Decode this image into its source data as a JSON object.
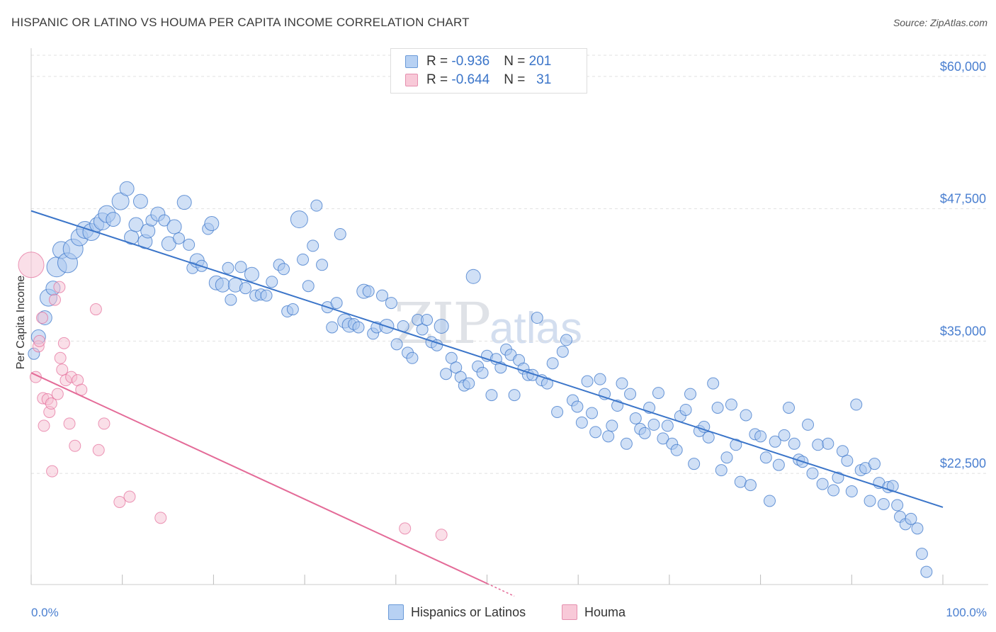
{
  "header": {
    "title": "HISPANIC OR LATINO VS HOUMA PER CAPITA INCOME CORRELATION CHART",
    "source": "Source: ZipAtlas.com"
  },
  "watermark": {
    "main": "ZIP",
    "sub": "atlas"
  },
  "legend": {
    "rows": [
      {
        "r_label": "R = ",
        "r_value": "-0.936",
        "n_label": "N = ",
        "n_value": "201"
      },
      {
        "r_label": "R = ",
        "r_value": "-0.644",
        "n_label": "N = ",
        "n_value": "  31"
      }
    ]
  },
  "bottom_legend": {
    "items": [
      {
        "label": "Hispanics or Latinos"
      },
      {
        "label": "Houma"
      }
    ]
  },
  "colors": {
    "blue": "#3b75c9",
    "blue_fill": "#a9c7ef",
    "pink": "#e46b98",
    "pink_fill": "#f5bfd1",
    "grid": "#e1e1e1"
  },
  "chart_data": {
    "type": "scatter",
    "ylabel": "Per Capita Income",
    "xlabel": "",
    "xlim": [
      0,
      100
    ],
    "ylim": [
      12000,
      62000
    ],
    "x_tick_labels": {
      "left": "0.0%",
      "right": "100.0%"
    },
    "y_ticks": [
      {
        "value": 22500,
        "label": "$22,500"
      },
      {
        "value": 35000,
        "label": "$35,000"
      },
      {
        "value": 47500,
        "label": "$47,500"
      },
      {
        "value": 60000,
        "label": "$60,000"
      }
    ],
    "grid": true,
    "legend_position": "top-center",
    "series": [
      {
        "name": "Hispanics or Latinos",
        "color": "#3b75c9",
        "trend": {
          "x0": 0,
          "y0": 47300,
          "x1": 100,
          "y1": 19300
        },
        "points": [
          [
            0.3,
            33800,
            8
          ],
          [
            0.8,
            35400,
            10
          ],
          [
            1.5,
            37200,
            10
          ],
          [
            1.9,
            39100,
            12
          ],
          [
            2.4,
            40000,
            10
          ],
          [
            2.8,
            42000,
            14
          ],
          [
            3.3,
            43600,
            12
          ],
          [
            4.0,
            42400,
            14
          ],
          [
            4.6,
            43700,
            14
          ],
          [
            5.3,
            44800,
            12
          ],
          [
            5.9,
            45500,
            12
          ],
          [
            6.6,
            45300,
            12
          ],
          [
            7.2,
            46000,
            10
          ],
          [
            7.8,
            46300,
            12
          ],
          [
            8.3,
            47000,
            12
          ],
          [
            9.0,
            46500,
            10
          ],
          [
            9.8,
            48200,
            12
          ],
          [
            10.5,
            49400,
            10
          ],
          [
            11.0,
            44800,
            10
          ],
          [
            11.5,
            46000,
            10
          ],
          [
            12.0,
            48200,
            10
          ],
          [
            12.5,
            44400,
            10
          ],
          [
            12.8,
            45400,
            10
          ],
          [
            13.2,
            46400,
            8
          ],
          [
            13.9,
            47000,
            10
          ],
          [
            14.6,
            46400,
            8
          ],
          [
            15.1,
            44200,
            10
          ],
          [
            15.7,
            45800,
            10
          ],
          [
            16.2,
            44700,
            8
          ],
          [
            16.8,
            48100,
            10
          ],
          [
            17.3,
            44100,
            8
          ],
          [
            17.7,
            41900,
            8
          ],
          [
            18.2,
            42600,
            10
          ],
          [
            18.7,
            42100,
            8
          ],
          [
            19.4,
            45600,
            8
          ],
          [
            19.8,
            46100,
            10
          ],
          [
            20.3,
            40500,
            10
          ],
          [
            21.0,
            40300,
            10
          ],
          [
            21.6,
            41900,
            8
          ],
          [
            21.9,
            38900,
            8
          ],
          [
            22.4,
            40300,
            10
          ],
          [
            23.0,
            42000,
            8
          ],
          [
            23.5,
            40000,
            8
          ],
          [
            24.2,
            41300,
            10
          ],
          [
            24.6,
            39300,
            8
          ],
          [
            25.2,
            39400,
            8
          ],
          [
            25.8,
            39300,
            8
          ],
          [
            26.4,
            40600,
            8
          ],
          [
            27.2,
            42200,
            8
          ],
          [
            27.7,
            41800,
            8
          ],
          [
            28.1,
            37800,
            8
          ],
          [
            28.7,
            38000,
            8
          ],
          [
            29.4,
            46500,
            12
          ],
          [
            29.8,
            42700,
            8
          ],
          [
            30.4,
            40200,
            8
          ],
          [
            30.9,
            44000,
            8
          ],
          [
            31.3,
            47800,
            8
          ],
          [
            31.9,
            42200,
            8
          ],
          [
            32.5,
            38200,
            8
          ],
          [
            33.0,
            36300,
            8
          ],
          [
            33.5,
            38600,
            8
          ],
          [
            33.9,
            45100,
            8
          ],
          [
            34.4,
            36900,
            10
          ],
          [
            34.9,
            36500,
            10
          ],
          [
            35.4,
            36600,
            8
          ],
          [
            35.9,
            36300,
            8
          ],
          [
            36.5,
            39700,
            10
          ],
          [
            37.0,
            39700,
            8
          ],
          [
            37.5,
            35700,
            8
          ],
          [
            37.9,
            36300,
            8
          ],
          [
            38.5,
            39300,
            8
          ],
          [
            39.0,
            36400,
            10
          ],
          [
            39.5,
            38600,
            8
          ],
          [
            40.1,
            34700,
            8
          ],
          [
            40.8,
            36400,
            8
          ],
          [
            41.3,
            33900,
            8
          ],
          [
            41.8,
            33400,
            8
          ],
          [
            42.4,
            37000,
            8
          ],
          [
            42.9,
            36100,
            8
          ],
          [
            43.4,
            37000,
            8
          ],
          [
            43.9,
            34900,
            8
          ],
          [
            44.5,
            34600,
            8
          ],
          [
            45.0,
            36400,
            10
          ],
          [
            45.5,
            31900,
            8
          ],
          [
            46.1,
            33400,
            8
          ],
          [
            46.6,
            32500,
            8
          ],
          [
            47.1,
            31600,
            8
          ],
          [
            47.5,
            30800,
            8
          ],
          [
            48.0,
            31000,
            8
          ],
          [
            48.5,
            41100,
            10
          ],
          [
            49.0,
            32600,
            8
          ],
          [
            49.5,
            32000,
            8
          ],
          [
            50.0,
            33600,
            8
          ],
          [
            50.5,
            29900,
            8
          ],
          [
            51.0,
            33300,
            8
          ],
          [
            51.5,
            32500,
            8
          ],
          [
            52.1,
            34200,
            8
          ],
          [
            52.6,
            33700,
            8
          ],
          [
            53.0,
            29900,
            8
          ],
          [
            53.5,
            33200,
            8
          ],
          [
            54.0,
            32400,
            8
          ],
          [
            54.5,
            31800,
            8
          ],
          [
            55.0,
            31800,
            8
          ],
          [
            55.5,
            37200,
            8
          ],
          [
            56.0,
            31300,
            8
          ],
          [
            56.6,
            31000,
            8
          ],
          [
            57.2,
            32900,
            8
          ],
          [
            57.7,
            28300,
            8
          ],
          [
            58.3,
            34000,
            8
          ],
          [
            58.7,
            35100,
            8
          ],
          [
            59.4,
            29400,
            8
          ],
          [
            59.9,
            28800,
            8
          ],
          [
            60.4,
            27300,
            8
          ],
          [
            61.0,
            31200,
            8
          ],
          [
            61.5,
            28200,
            8
          ],
          [
            61.9,
            26400,
            8
          ],
          [
            62.4,
            31400,
            8
          ],
          [
            62.9,
            30000,
            8
          ],
          [
            63.3,
            26000,
            8
          ],
          [
            63.7,
            27000,
            8
          ],
          [
            64.3,
            28900,
            8
          ],
          [
            64.8,
            31000,
            8
          ],
          [
            65.3,
            25300,
            8
          ],
          [
            65.7,
            30000,
            8
          ],
          [
            66.3,
            27700,
            8
          ],
          [
            66.8,
            26700,
            8
          ],
          [
            67.3,
            26300,
            8
          ],
          [
            67.8,
            28700,
            8
          ],
          [
            68.3,
            27100,
            8
          ],
          [
            68.8,
            30100,
            8
          ],
          [
            69.3,
            25800,
            8
          ],
          [
            69.8,
            27000,
            8
          ],
          [
            70.3,
            25300,
            8
          ],
          [
            70.8,
            24700,
            8
          ],
          [
            71.2,
            27900,
            8
          ],
          [
            71.8,
            28500,
            8
          ],
          [
            72.3,
            30000,
            8
          ],
          [
            72.7,
            23400,
            8
          ],
          [
            73.3,
            26500,
            8
          ],
          [
            73.8,
            26900,
            8
          ],
          [
            74.3,
            25900,
            8
          ],
          [
            74.8,
            31000,
            8
          ],
          [
            75.3,
            28700,
            8
          ],
          [
            75.7,
            22800,
            8
          ],
          [
            76.3,
            24000,
            8
          ],
          [
            76.8,
            29000,
            8
          ],
          [
            77.3,
            25200,
            8
          ],
          [
            77.8,
            21700,
            8
          ],
          [
            78.4,
            28000,
            8
          ],
          [
            78.9,
            21400,
            8
          ],
          [
            79.4,
            26200,
            8
          ],
          [
            80.0,
            26000,
            8
          ],
          [
            80.6,
            24000,
            8
          ],
          [
            81.0,
            19900,
            8
          ],
          [
            81.6,
            25500,
            8
          ],
          [
            82.0,
            23300,
            8
          ],
          [
            82.6,
            26100,
            8
          ],
          [
            83.1,
            28700,
            8
          ],
          [
            83.7,
            25300,
            8
          ],
          [
            84.2,
            23800,
            8
          ],
          [
            84.6,
            23600,
            8
          ],
          [
            85.2,
            27100,
            8
          ],
          [
            85.7,
            22500,
            8
          ],
          [
            86.3,
            25200,
            8
          ],
          [
            86.8,
            21500,
            8
          ],
          [
            87.4,
            25300,
            8
          ],
          [
            88.0,
            20900,
            8
          ],
          [
            88.5,
            22100,
            8
          ],
          [
            89.0,
            24600,
            8
          ],
          [
            89.5,
            23700,
            8
          ],
          [
            90.0,
            20800,
            8
          ],
          [
            90.5,
            29000,
            8
          ],
          [
            91.0,
            22800,
            8
          ],
          [
            91.5,
            23000,
            8
          ],
          [
            92.0,
            19900,
            8
          ],
          [
            92.5,
            23400,
            8
          ],
          [
            93.0,
            21600,
            8
          ],
          [
            93.5,
            19600,
            8
          ],
          [
            94.0,
            21200,
            8
          ],
          [
            94.5,
            21300,
            8
          ],
          [
            95.0,
            19500,
            8
          ],
          [
            95.3,
            18400,
            8
          ],
          [
            95.9,
            17700,
            8
          ],
          [
            96.5,
            18200,
            8
          ],
          [
            97.2,
            17300,
            8
          ],
          [
            97.7,
            14900,
            8
          ],
          [
            98.2,
            13200,
            8
          ]
        ]
      },
      {
        "name": "Houma",
        "color": "#e46b98",
        "trend": {
          "x0": 0,
          "y0": 32000,
          "x1": 50,
          "y1": 12100,
          "dash_x1": 53,
          "dash_y1": 10900
        },
        "points": [
          [
            0.0,
            42200,
            18
          ],
          [
            0.5,
            31600,
            8
          ],
          [
            0.8,
            34500,
            8
          ],
          [
            0.9,
            35000,
            8
          ],
          [
            1.2,
            37200,
            8
          ],
          [
            1.3,
            29600,
            8
          ],
          [
            1.4,
            27000,
            8
          ],
          [
            1.8,
            29500,
            8
          ],
          [
            2.0,
            28300,
            8
          ],
          [
            2.2,
            29100,
            8
          ],
          [
            2.3,
            22700,
            8
          ],
          [
            2.6,
            38900,
            8
          ],
          [
            2.9,
            30000,
            8
          ],
          [
            3.1,
            40100,
            8
          ],
          [
            3.2,
            33400,
            8
          ],
          [
            3.4,
            32300,
            8
          ],
          [
            3.6,
            34800,
            8
          ],
          [
            3.8,
            31300,
            8
          ],
          [
            4.2,
            27200,
            8
          ],
          [
            4.4,
            31600,
            8
          ],
          [
            4.8,
            25100,
            8
          ],
          [
            5.1,
            31300,
            8
          ],
          [
            5.5,
            30400,
            8
          ],
          [
            7.1,
            38000,
            8
          ],
          [
            7.4,
            24700,
            8
          ],
          [
            8.0,
            27200,
            8
          ],
          [
            9.7,
            19800,
            8
          ],
          [
            10.8,
            20300,
            8
          ],
          [
            14.2,
            18300,
            8
          ],
          [
            41.0,
            17300,
            8
          ],
          [
            45.0,
            16700,
            8
          ]
        ]
      }
    ]
  }
}
